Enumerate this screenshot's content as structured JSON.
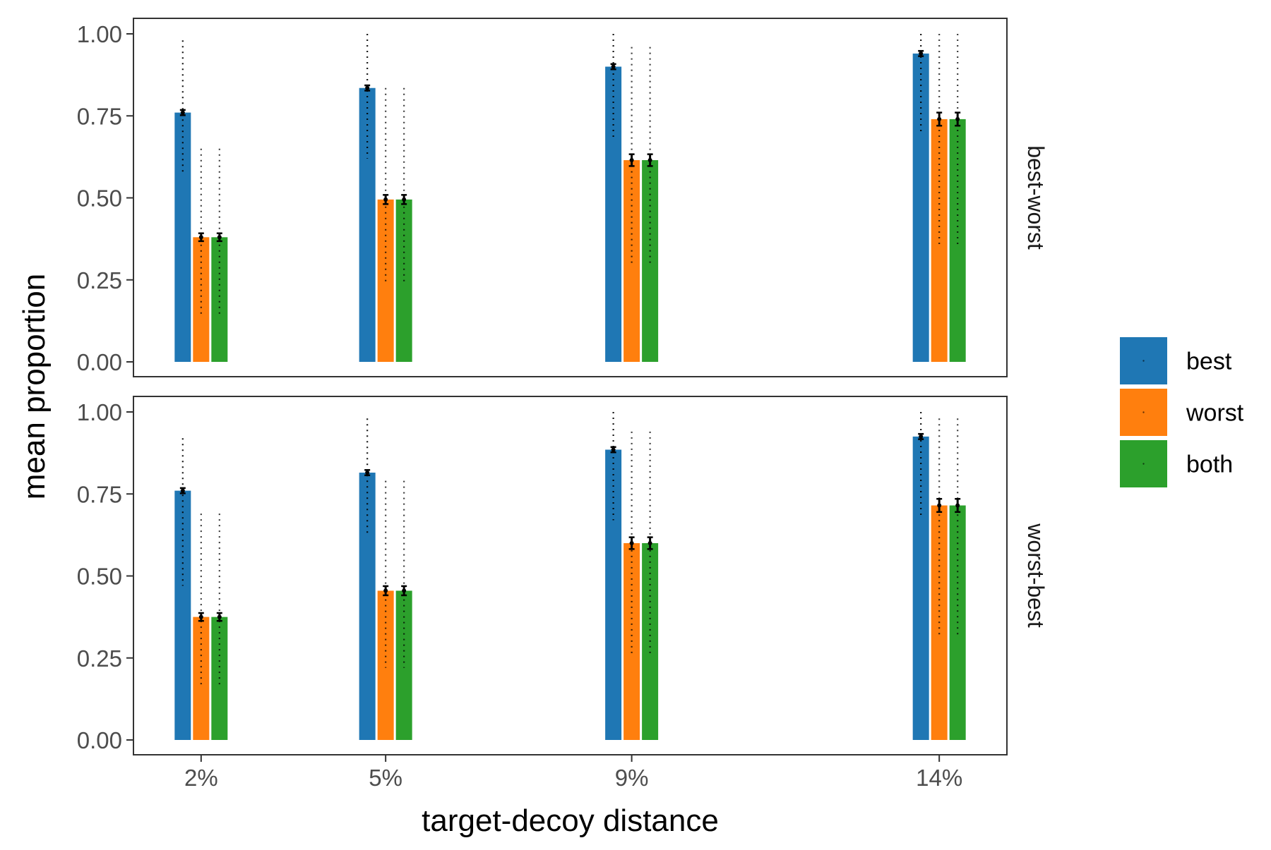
{
  "chart_data": {
    "type": "bar",
    "xlabel": "target-decoy distance",
    "ylabel": "mean proportion",
    "categories": [
      "2%",
      "5%",
      "9%",
      "14%"
    ],
    "x_positions": [
      2,
      5,
      9,
      14
    ],
    "xlim": [
      0.9,
      15.1
    ],
    "ylim": [
      0,
      1
    ],
    "y_ticks": [
      "0.00",
      "0.25",
      "0.50",
      "0.75",
      "1.00"
    ],
    "y_tick_values": [
      0,
      0.25,
      0.5,
      0.75,
      1.0
    ],
    "grid": false,
    "legend_position": "right",
    "series_names": [
      "best",
      "worst",
      "both"
    ],
    "colors": {
      "best": "#1f77b4",
      "worst": "#ff7f0e",
      "both": "#2ca02c",
      "error": "#000000",
      "range": "#000000"
    },
    "panels": [
      {
        "label": "best-worst",
        "series": [
          {
            "name": "best",
            "values": [
              0.76,
              0.835,
              0.9,
              0.94
            ],
            "err": [
              0.008,
              0.008,
              0.008,
              0.008
            ],
            "range": [
              [
                0.58,
                0.98
              ],
              [
                0.62,
                1.0
              ],
              [
                0.68,
                1.0
              ],
              [
                0.7,
                1.0
              ]
            ]
          },
          {
            "name": "worst",
            "values": [
              0.38,
              0.495,
              0.615,
              0.74
            ],
            "err": [
              0.012,
              0.014,
              0.018,
              0.02
            ],
            "range": [
              [
                0.14,
                0.65
              ],
              [
                0.24,
                0.835
              ],
              [
                0.29,
                0.96
              ],
              [
                0.35,
                1.0
              ]
            ]
          },
          {
            "name": "both",
            "values": [
              0.38,
              0.495,
              0.615,
              0.74
            ],
            "err": [
              0.012,
              0.014,
              0.018,
              0.02
            ],
            "range": [
              [
                0.14,
                0.65
              ],
              [
                0.24,
                0.835
              ],
              [
                0.29,
                0.96
              ],
              [
                0.35,
                1.0
              ]
            ]
          }
        ]
      },
      {
        "label": "worst-best",
        "series": [
          {
            "name": "best",
            "values": [
              0.76,
              0.815,
              0.885,
              0.925
            ],
            "err": [
              0.008,
              0.008,
              0.008,
              0.008
            ],
            "range": [
              [
                0.47,
                0.92
              ],
              [
                0.62,
                0.98
              ],
              [
                0.67,
                1.0
              ],
              [
                0.68,
                1.0
              ]
            ]
          },
          {
            "name": "worst",
            "values": [
              0.375,
              0.455,
              0.6,
              0.715
            ],
            "err": [
              0.012,
              0.014,
              0.018,
              0.02
            ],
            "range": [
              [
                0.16,
                0.69
              ],
              [
                0.22,
                0.79
              ],
              [
                0.26,
                0.94
              ],
              [
                0.31,
                0.98
              ]
            ]
          },
          {
            "name": "both",
            "values": [
              0.375,
              0.455,
              0.6,
              0.715
            ],
            "err": [
              0.012,
              0.014,
              0.018,
              0.02
            ],
            "range": [
              [
                0.16,
                0.69
              ],
              [
                0.22,
                0.79
              ],
              [
                0.26,
                0.94
              ],
              [
                0.31,
                0.98
              ]
            ]
          }
        ]
      }
    ]
  }
}
